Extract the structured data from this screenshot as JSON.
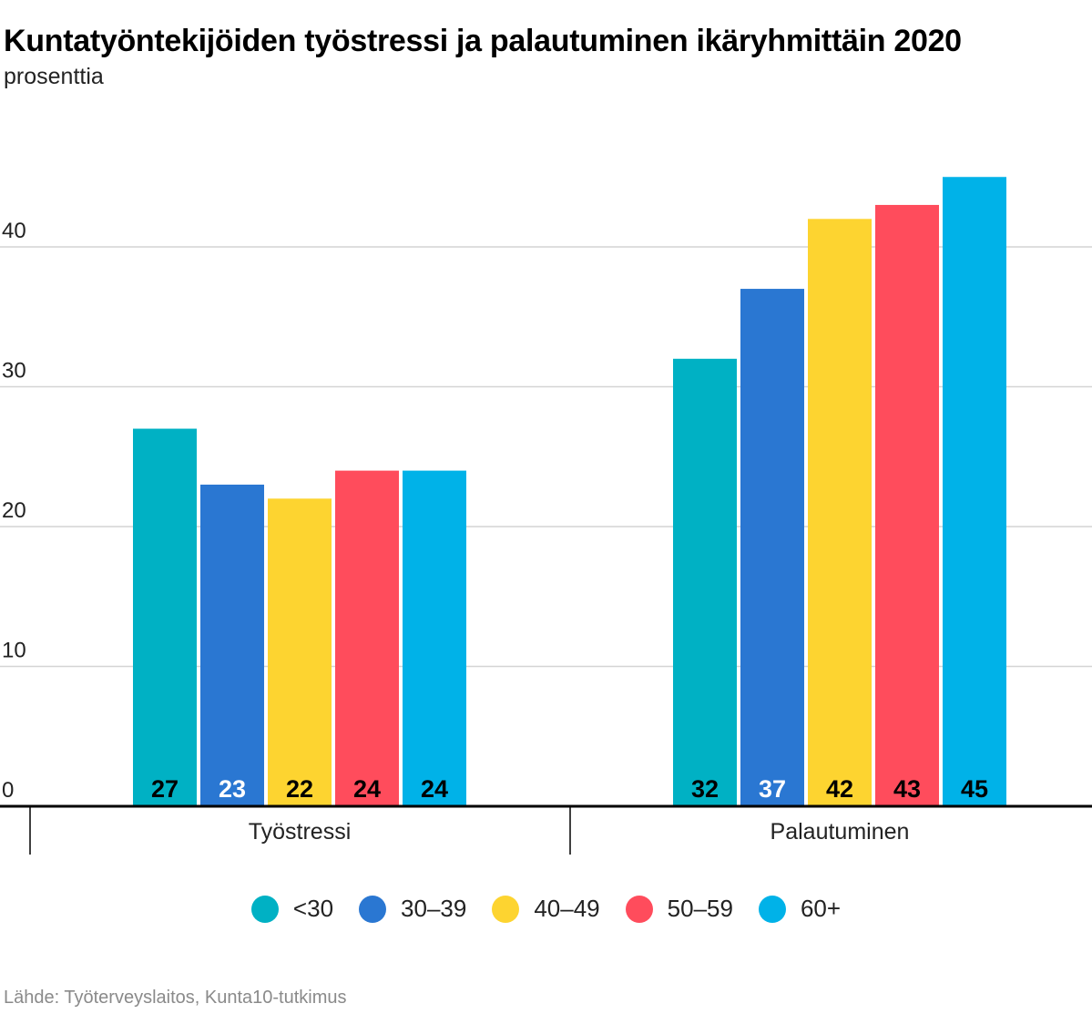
{
  "header": {
    "title": "Kuntatyöntekijöiden työstressi ja palautuminen ikäryhmittäin 2020",
    "subtitle": "prosenttia"
  },
  "source": "Lähde: Työterveyslaitos, Kunta10-tutkimus",
  "chart_data": {
    "type": "bar",
    "title": "Kuntatyöntekijöiden työstressi ja palautuminen ikäryhmittäin 2020",
    "subtitle": "prosenttia",
    "categories": [
      "Työstressi",
      "Palautuminen"
    ],
    "series": [
      {
        "name": "<30",
        "color": "#00b1c4",
        "values": [
          27,
          32
        ]
      },
      {
        "name": "30–39",
        "color": "#2a77d2",
        "values": [
          23,
          37
        ]
      },
      {
        "name": "40–49",
        "color": "#fdd430",
        "values": [
          22,
          42
        ]
      },
      {
        "name": "50–59",
        "color": "#ff4c5c",
        "values": [
          24,
          43
        ]
      },
      {
        "name": "60+",
        "color": "#00b2e8",
        "values": [
          24,
          45
        ]
      }
    ],
    "value_label_colors": [
      "#000000",
      "#ffffff",
      "#000000",
      "#000000",
      "#000000"
    ],
    "yticks": [
      0,
      10,
      20,
      30,
      40
    ],
    "ylim": [
      0,
      45
    ],
    "grid": true,
    "legend": "bottom"
  }
}
